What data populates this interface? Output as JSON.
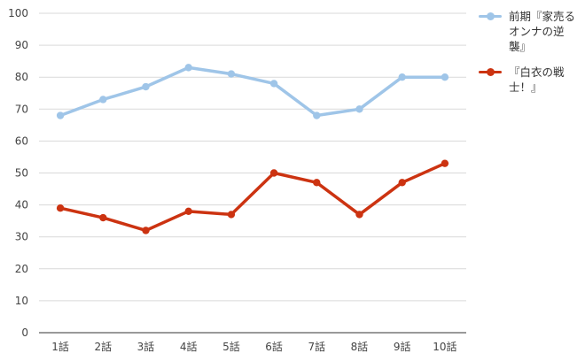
{
  "chart_data": {
    "type": "line",
    "categories": [
      "1話",
      "2話",
      "3話",
      "4話",
      "5話",
      "6話",
      "7話",
      "8話",
      "9話",
      "10話"
    ],
    "ylim": [
      0,
      100
    ],
    "yticks": [
      0,
      10,
      20,
      30,
      40,
      50,
      60,
      70,
      80,
      90,
      100
    ],
    "grid": true,
    "legend_position": "right",
    "series": [
      {
        "name": "前期『家売るオンナの逆襲』",
        "color": "#9fc5e8",
        "values": [
          68,
          73,
          77,
          83,
          81,
          78,
          68,
          70,
          80,
          80
        ]
      },
      {
        "name": "『白衣の戦士！』",
        "color": "#cc3311",
        "values": [
          39,
          36,
          32,
          38,
          37,
          50,
          47,
          37,
          47,
          53
        ]
      }
    ]
  }
}
